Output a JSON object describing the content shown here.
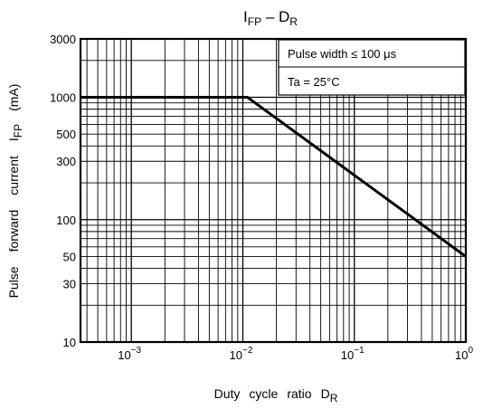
{
  "chart_data": {
    "type": "line",
    "title": {
      "symbol": "I",
      "subscript": "FP",
      "separator": " – ",
      "symbol2": "D",
      "subscript2": "R"
    },
    "xlabel": {
      "words": [
        "Duty",
        "cycle",
        "ratio",
        "D"
      ],
      "subscript": "R"
    },
    "ylabel": {
      "words": [
        "Pulse",
        "forward",
        "current",
        "I"
      ],
      "subscript": "FP",
      "unit": "(mA)"
    },
    "x_scale": "log",
    "y_scale": "log",
    "xlim": [
      0.00035,
      1
    ],
    "ylim": [
      10,
      3000
    ],
    "x_ticks": [
      {
        "value": 0.001,
        "base": "10",
        "exp": "−3"
      },
      {
        "value": 0.01,
        "base": "10",
        "exp": "−2"
      },
      {
        "value": 0.1,
        "base": "10",
        "exp": "−1"
      },
      {
        "value": 1,
        "base": "10",
        "exp": "0"
      }
    ],
    "y_ticks": [
      {
        "value": 3000,
        "label": "3000"
      },
      {
        "value": 1000,
        "label": "1000"
      },
      {
        "value": 500,
        "label": "500"
      },
      {
        "value": 300,
        "label": "300"
      },
      {
        "value": 100,
        "label": "100"
      },
      {
        "value": 50,
        "label": "50"
      },
      {
        "value": 30,
        "label": "30"
      },
      {
        "value": 10,
        "label": "10"
      }
    ],
    "grid": true,
    "legend_position": "top-right",
    "annotations": [
      "Pulse width ≤ 100 μs",
      "Ta = 25°C"
    ],
    "series": [
      {
        "x": [
          0.00035,
          0.011,
          1
        ],
        "y": [
          1000,
          1000,
          50
        ]
      }
    ]
  }
}
